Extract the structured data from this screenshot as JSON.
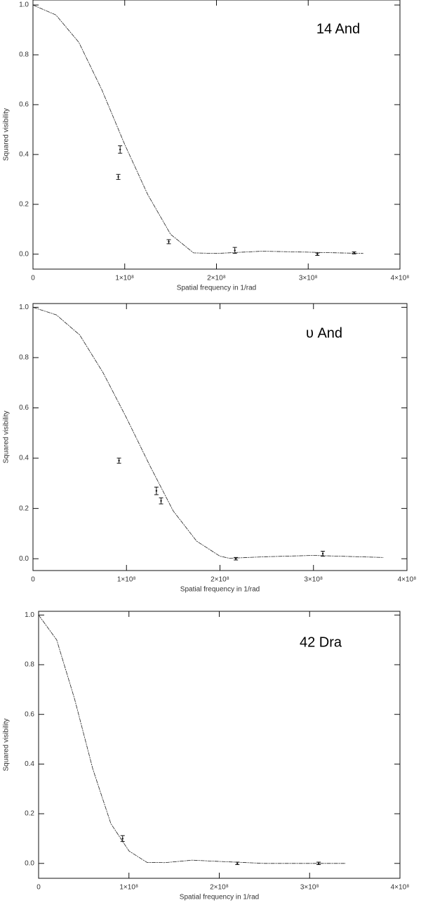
{
  "chart_data": [
    {
      "type": "scatter",
      "title": "14 And",
      "xlabel": "Spatial frequency in 1/rad",
      "ylabel": "Squared visibility",
      "xlim": [
        0,
        400000000
      ],
      "ylim": [
        -0.06,
        1.02
      ],
      "xticks": [
        0,
        {
          "value": 100000000,
          "label": "1×10⁸"
        },
        {
          "value": 200000000,
          "label": "2×10⁸"
        },
        {
          "value": 300000000,
          "label": "3×10⁸"
        },
        {
          "value": 400000000,
          "label": "4×10⁸"
        }
      ],
      "yticks": [
        {
          "value": 0,
          "label": "0.0"
        },
        0.2,
        0.4,
        0.6,
        0.8,
        {
          "value": 1,
          "label": "1.0"
        }
      ],
      "points": {
        "x": [
          95000000,
          93000000,
          148000000,
          220000000,
          310000000,
          350000000
        ],
        "values": [
          0.42,
          0.31,
          0.05,
          0.015,
          0.0,
          0.005
        ],
        "errors": [
          0.015,
          0.01,
          0.008,
          0.012,
          0.005,
          0.004
        ]
      },
      "model": {
        "x": [
          0,
          25000000,
          50000000,
          75000000,
          100000000,
          125000000,
          150000000,
          175000000,
          200000000,
          250000000,
          300000000,
          360000000
        ],
        "values": [
          1.0,
          0.96,
          0.85,
          0.66,
          0.44,
          0.24,
          0.08,
          0.005,
          0.003,
          0.012,
          0.008,
          0.003
        ]
      }
    },
    {
      "type": "scatter",
      "title": "υ And",
      "xlabel": "Spatial frequency in 1/rad",
      "ylabel": "Squared visibility",
      "xlim": [
        0,
        400000000
      ],
      "ylim": [
        -0.047,
        1.015
      ],
      "xticks": [
        0,
        {
          "value": 100000000,
          "label": "1×10⁸"
        },
        {
          "value": 200000000,
          "label": "2×10⁸"
        },
        {
          "value": 300000000,
          "label": "3×10⁸"
        },
        {
          "value": 400000000,
          "label": "4×10⁸"
        }
      ],
      "yticks": [
        {
          "value": 0,
          "label": "0.0"
        },
        0.2,
        0.4,
        0.6,
        0.8,
        {
          "value": 1,
          "label": "1.0"
        }
      ],
      "points": {
        "x": [
          92000000,
          132000000,
          137000000,
          217000000,
          310000000
        ],
        "values": [
          0.39,
          0.27,
          0.23,
          0.0,
          0.02
        ],
        "errors": [
          0.01,
          0.015,
          0.012,
          0.005,
          0.01
        ]
      },
      "model": {
        "x": [
          0,
          25000000,
          50000000,
          75000000,
          100000000,
          125000000,
          150000000,
          175000000,
          200000000,
          210000000,
          250000000,
          300000000,
          375000000
        ],
        "values": [
          1.0,
          0.97,
          0.89,
          0.74,
          0.56,
          0.37,
          0.19,
          0.07,
          0.01,
          0.002,
          0.008,
          0.013,
          0.005
        ]
      }
    },
    {
      "type": "scatter",
      "title": "42 Dra",
      "xlabel": "Spatial frequency in 1/rad",
      "ylabel": "Squared visibility",
      "xlim": [
        0,
        400000000
      ],
      "ylim": [
        -0.06,
        1.015
      ],
      "xticks": [
        0,
        {
          "value": 100000000,
          "label": "1×10⁸"
        },
        {
          "value": 200000000,
          "label": "2×10⁸"
        },
        {
          "value": 300000000,
          "label": "3×10⁸"
        },
        {
          "value": 400000000,
          "label": "4×10⁸"
        }
      ],
      "yticks": [
        {
          "value": 0,
          "label": "0.0"
        },
        0.2,
        0.4,
        0.6,
        0.8,
        {
          "value": 1,
          "label": "1.0"
        }
      ],
      "points": {
        "x": [
          93000000,
          220000000,
          310000000
        ],
        "values": [
          0.1,
          0.0,
          0.0
        ],
        "errors": [
          0.012,
          0.005,
          0.005
        ]
      },
      "model": {
        "x": [
          0,
          20000000,
          40000000,
          60000000,
          80000000,
          100000000,
          120000000,
          140000000,
          170000000,
          200000000,
          250000000,
          340000000
        ],
        "values": [
          1.0,
          0.9,
          0.66,
          0.38,
          0.16,
          0.05,
          0.004,
          0.003,
          0.013,
          0.008,
          0.0,
          0.0
        ]
      }
    }
  ]
}
